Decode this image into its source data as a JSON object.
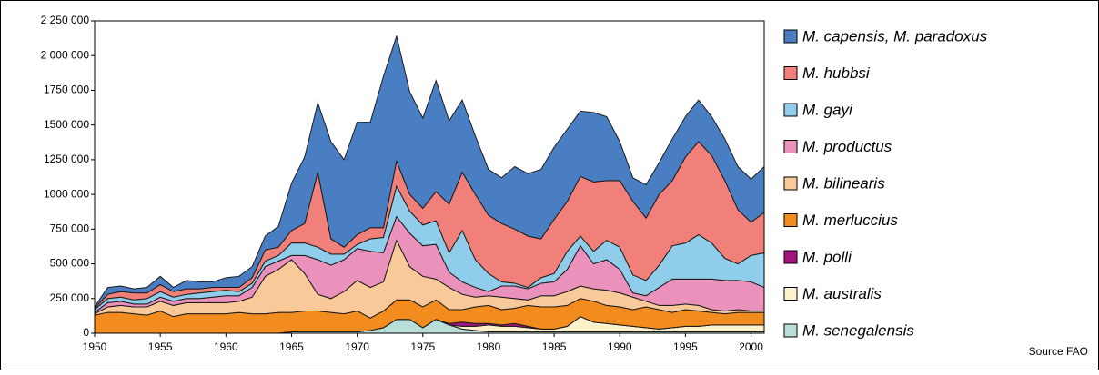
{
  "chart_data": {
    "type": "stacked_area",
    "source": "Source FAO",
    "x": [
      1950,
      1951,
      1952,
      1953,
      1954,
      1955,
      1956,
      1957,
      1958,
      1959,
      1960,
      1961,
      1962,
      1963,
      1964,
      1965,
      1966,
      1967,
      1968,
      1969,
      1970,
      1971,
      1972,
      1973,
      1974,
      1975,
      1976,
      1977,
      1978,
      1979,
      1980,
      1981,
      1982,
      1983,
      1984,
      1985,
      1986,
      1987,
      1988,
      1989,
      1990,
      1991,
      1992,
      1993,
      1994,
      1995,
      1996,
      1997,
      1998,
      1999,
      2000,
      2001
    ],
    "xlim": [
      1950,
      2001
    ],
    "xticks": [
      1950,
      1955,
      1960,
      1965,
      1970,
      1975,
      1980,
      1985,
      1990,
      1995,
      2000
    ],
    "ylim": [
      0,
      2250000
    ],
    "yticks": [
      0,
      {
        "value": 250000,
        "label": "250 000"
      },
      {
        "value": 500000,
        "label": "500 000"
      },
      {
        "value": 750000,
        "label": "750 000"
      },
      {
        "value": 1000000,
        "label": "1000 000"
      },
      {
        "value": 1250000,
        "label": "1250 000"
      },
      {
        "value": 1500000,
        "label": "1500 000"
      },
      {
        "value": 1750000,
        "label": "1750 000"
      },
      {
        "value": 2000000,
        "label": "2 000 000"
      },
      {
        "value": 2250000,
        "label": "2 250 000"
      }
    ],
    "legend": "right",
    "series": [
      {
        "name": "M. capensis, M. paradoxus",
        "color": "#4a7ec2",
        "values": [
          10000,
          50000,
          40000,
          30000,
          40000,
          60000,
          30000,
          60000,
          50000,
          40000,
          70000,
          80000,
          80000,
          100000,
          150000,
          340000,
          480000,
          500000,
          700000,
          630000,
          810000,
          760000,
          1090000,
          900000,
          740000,
          650000,
          800000,
          600000,
          520000,
          420000,
          330000,
          330000,
          450000,
          450000,
          500000,
          520000,
          520000,
          470000,
          500000,
          460000,
          280000,
          170000,
          240000,
          230000,
          300000,
          290000,
          300000,
          280000,
          300000,
          310000,
          310000,
          330000
        ]
      },
      {
        "name": "M. hubbsi",
        "color": "#f2807a",
        "values": [
          10000,
          30000,
          40000,
          50000,
          40000,
          50000,
          40000,
          40000,
          30000,
          30000,
          20000,
          30000,
          40000,
          80000,
          60000,
          90000,
          140000,
          540000,
          110000,
          50000,
          70000,
          80000,
          70000,
          180000,
          120000,
          120000,
          210000,
          350000,
          420000,
          470000,
          420000,
          420000,
          390000,
          370000,
          280000,
          390000,
          360000,
          430000,
          500000,
          430000,
          480000,
          530000,
          450000,
          510000,
          470000,
          620000,
          670000,
          630000,
          560000,
          390000,
          240000,
          290000
        ]
      },
      {
        "name": "M. gayi",
        "color": "#8fcdea",
        "values": [
          20000,
          30000,
          30000,
          30000,
          40000,
          40000,
          30000,
          30000,
          40000,
          40000,
          40000,
          30000,
          30000,
          40000,
          40000,
          90000,
          90000,
          90000,
          80000,
          40000,
          30000,
          90000,
          110000,
          220000,
          160000,
          150000,
          170000,
          140000,
          370000,
          200000,
          130000,
          30000,
          20000,
          10000,
          40000,
          60000,
          130000,
          70000,
          90000,
          140000,
          160000,
          130000,
          110000,
          160000,
          240000,
          260000,
          320000,
          260000,
          160000,
          120000,
          190000,
          250000
        ]
      },
      {
        "name": "M. productus",
        "color": "#ea92bc",
        "values": [
          10000,
          30000,
          30000,
          20000,
          20000,
          30000,
          30000,
          30000,
          30000,
          40000,
          50000,
          40000,
          70000,
          70000,
          60000,
          30000,
          130000,
          250000,
          240000,
          230000,
          230000,
          260000,
          210000,
          170000,
          240000,
          220000,
          250000,
          110000,
          90000,
          70000,
          30000,
          80000,
          90000,
          80000,
          90000,
          100000,
          160000,
          290000,
          180000,
          220000,
          170000,
          30000,
          40000,
          130000,
          190000,
          180000,
          190000,
          220000,
          220000,
          210000,
          210000,
          170000
        ]
      },
      {
        "name": "M. bilinearis",
        "color": "#f9c99a",
        "values": [
          10000,
          40000,
          50000,
          50000,
          60000,
          70000,
          80000,
          80000,
          80000,
          80000,
          80000,
          80000,
          120000,
          270000,
          310000,
          380000,
          270000,
          120000,
          100000,
          160000,
          220000,
          220000,
          210000,
          430000,
          240000,
          220000,
          150000,
          160000,
          110000,
          70000,
          70000,
          90000,
          70000,
          40000,
          80000,
          80000,
          100000,
          90000,
          90000,
          110000,
          100000,
          90000,
          40000,
          30000,
          50000,
          40000,
          40000,
          20000,
          20000,
          20000,
          10000,
          10000
        ]
      },
      {
        "name": "M. merluccius",
        "color": "#f28c1e",
        "values": [
          130000,
          150000,
          150000,
          140000,
          130000,
          160000,
          120000,
          140000,
          140000,
          140000,
          140000,
          150000,
          140000,
          140000,
          150000,
          140000,
          150000,
          150000,
          140000,
          130000,
          150000,
          90000,
          120000,
          140000,
          140000,
          150000,
          140000,
          100000,
          90000,
          120000,
          130000,
          110000,
          110000,
          150000,
          160000,
          160000,
          150000,
          130000,
          150000,
          130000,
          130000,
          120000,
          150000,
          140000,
          110000,
          120000,
          110000,
          90000,
          80000,
          90000,
          90000,
          90000
        ]
      },
      {
        "name": "M. polli",
        "color": "#a3157c",
        "values": [
          0,
          0,
          0,
          0,
          0,
          0,
          0,
          0,
          0,
          0,
          0,
          0,
          0,
          0,
          0,
          0,
          0,
          0,
          0,
          0,
          0,
          0,
          0,
          0,
          0,
          0,
          0,
          10000,
          30000,
          20000,
          10000,
          10000,
          20000,
          10000,
          0,
          0,
          0,
          0,
          0,
          0,
          0,
          0,
          0,
          0,
          0,
          0,
          0,
          0,
          0,
          0,
          0,
          0
        ]
      },
      {
        "name": "M. australis",
        "color": "#fff1cc",
        "values": [
          0,
          0,
          0,
          0,
          0,
          0,
          0,
          0,
          0,
          0,
          0,
          0,
          0,
          0,
          0,
          0,
          0,
          0,
          0,
          0,
          0,
          0,
          0,
          0,
          0,
          0,
          0,
          0,
          20000,
          30000,
          50000,
          40000,
          40000,
          30000,
          20000,
          20000,
          40000,
          110000,
          70000,
          60000,
          50000,
          40000,
          30000,
          20000,
          30000,
          40000,
          40000,
          50000,
          50000,
          50000,
          50000,
          50000
        ]
      },
      {
        "name": "M. senegalensis",
        "color": "#b9ddd9",
        "values": [
          0,
          0,
          0,
          0,
          0,
          0,
          0,
          0,
          0,
          0,
          0,
          0,
          0,
          0,
          0,
          10000,
          10000,
          10000,
          10000,
          10000,
          10000,
          20000,
          40000,
          100000,
          100000,
          40000,
          100000,
          60000,
          30000,
          20000,
          10000,
          10000,
          10000,
          10000,
          10000,
          10000,
          10000,
          10000,
          10000,
          10000,
          10000,
          10000,
          10000,
          10000,
          10000,
          10000,
          10000,
          10000,
          10000,
          10000,
          10000,
          10000
        ]
      }
    ]
  }
}
